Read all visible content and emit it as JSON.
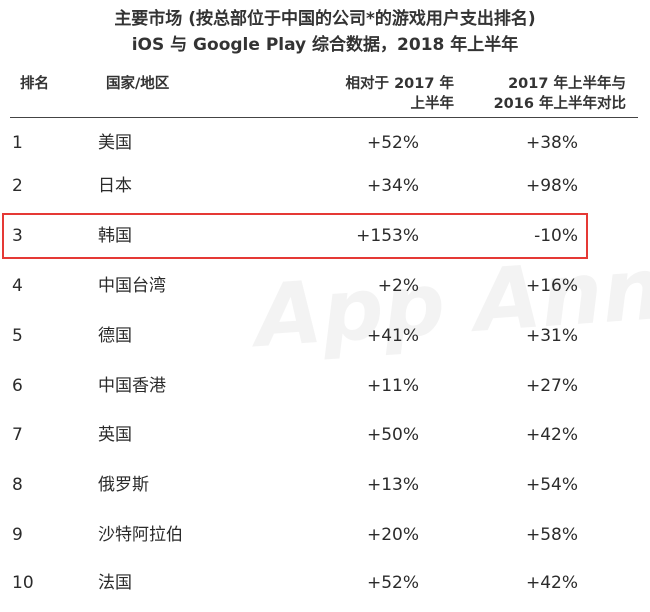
{
  "title": {
    "line1": "主要市场 (按总部位于中国的公司*的游戏用户支出排名)",
    "line2": "iOS 与 Google Play 综合数据，2018 年上半年"
  },
  "watermark": "App Annie",
  "table": {
    "headers": {
      "rank": "排名",
      "region": "国家/地区",
      "col1_line1": "相对于 2017 年",
      "col1_line2": "上半年",
      "col2_line1": "2017 年上半年与",
      "col2_line2": "2016 年上半年对比"
    },
    "highlighted_rank": "3",
    "highlight_color": "#e53935",
    "rows": [
      {
        "rank": "1",
        "region": "美国",
        "vs2017": "+52%",
        "y2017vs2016": "+38%"
      },
      {
        "rank": "2",
        "region": "日本",
        "vs2017": "+34%",
        "y2017vs2016": "+98%"
      },
      {
        "rank": "3",
        "region": "韩国",
        "vs2017": "+153%",
        "y2017vs2016": "-10%"
      },
      {
        "rank": "4",
        "region": "中国台湾",
        "vs2017": "+2%",
        "y2017vs2016": "+16%"
      },
      {
        "rank": "5",
        "region": "德国",
        "vs2017": "+41%",
        "y2017vs2016": "+31%"
      },
      {
        "rank": "6",
        "region": "中国香港",
        "vs2017": "+11%",
        "y2017vs2016": "+27%"
      },
      {
        "rank": "7",
        "region": "英国",
        "vs2017": "+50%",
        "y2017vs2016": "+42%"
      },
      {
        "rank": "8",
        "region": "俄罗斯",
        "vs2017": "+13%",
        "y2017vs2016": "+54%"
      },
      {
        "rank": "9",
        "region": "沙特阿拉伯",
        "vs2017": "+20%",
        "y2017vs2016": "+58%"
      },
      {
        "rank": "10",
        "region": "法国",
        "vs2017": "+52%",
        "y2017vs2016": "+42%"
      }
    ]
  }
}
